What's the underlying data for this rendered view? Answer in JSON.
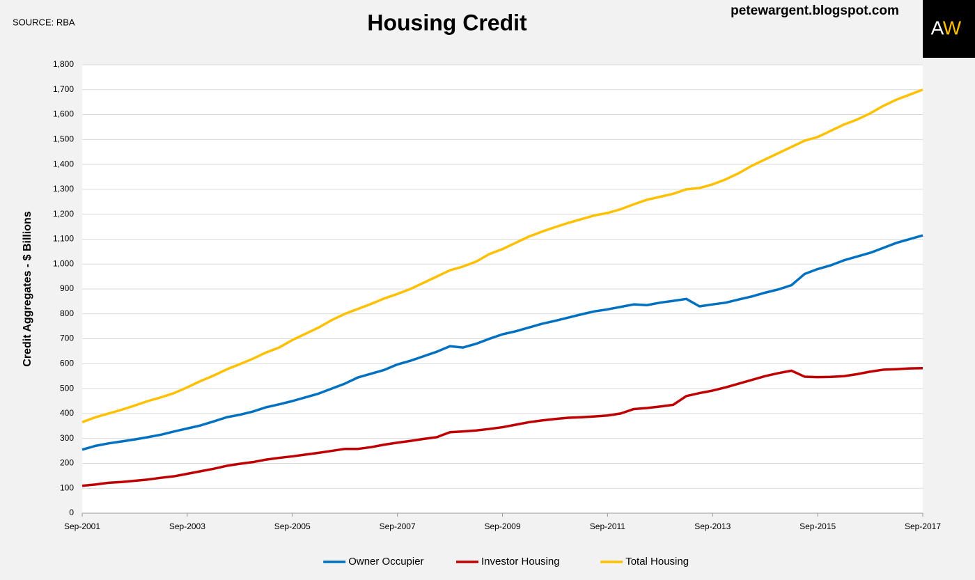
{
  "chart_data": {
    "type": "line",
    "title": "Housing Credit",
    "source": "SOURCE: RBA",
    "website": "petewargent.blogspot.com",
    "logo": {
      "left": "A",
      "right": "W"
    },
    "ylabel": "Credit Aggregates - $ Billions",
    "x": [
      "Sep-2001",
      "Dec-2001",
      "Mar-2002",
      "Jun-2002",
      "Sep-2002",
      "Dec-2002",
      "Mar-2003",
      "Jun-2003",
      "Sep-2003",
      "Dec-2003",
      "Mar-2004",
      "Jun-2004",
      "Sep-2004",
      "Dec-2004",
      "Mar-2005",
      "Jun-2005",
      "Sep-2005",
      "Dec-2005",
      "Mar-2006",
      "Jun-2006",
      "Sep-2006",
      "Dec-2006",
      "Mar-2007",
      "Jun-2007",
      "Sep-2007",
      "Dec-2007",
      "Mar-2008",
      "Jun-2008",
      "Sep-2008",
      "Dec-2008",
      "Mar-2009",
      "Jun-2009",
      "Sep-2009",
      "Dec-2009",
      "Mar-2010",
      "Jun-2010",
      "Sep-2010",
      "Dec-2010",
      "Mar-2011",
      "Jun-2011",
      "Sep-2011",
      "Dec-2011",
      "Mar-2012",
      "Jun-2012",
      "Sep-2012",
      "Dec-2012",
      "Mar-2013",
      "Jun-2013",
      "Sep-2013",
      "Dec-2013",
      "Mar-2014",
      "Jun-2014",
      "Sep-2014",
      "Dec-2014",
      "Mar-2015",
      "Jun-2015",
      "Sep-2015",
      "Dec-2015",
      "Mar-2016",
      "Jun-2016",
      "Sep-2016",
      "Dec-2016",
      "Mar-2017",
      "Jun-2017",
      "Sep-2017"
    ],
    "series": [
      {
        "name": "Owner Occupier",
        "color": "#0070c0",
        "values": [
          255,
          270,
          280,
          288,
          296,
          305,
          315,
          328,
          340,
          352,
          368,
          385,
          395,
          408,
          425,
          437,
          450,
          465,
          480,
          500,
          520,
          545,
          560,
          575,
          597,
          612,
          630,
          648,
          670,
          665,
          680,
          700,
          718,
          730,
          745,
          760,
          772,
          785,
          798,
          810,
          818,
          828,
          838,
          835,
          845,
          852,
          860,
          830,
          838,
          845,
          858,
          870,
          885,
          898,
          915,
          960,
          980,
          995,
          1015,
          1030,
          1045,
          1065,
          1085,
          1100,
          1115
        ]
      },
      {
        "name": "Investor Housing",
        "color": "#c00000",
        "values": [
          110,
          115,
          122,
          125,
          130,
          135,
          142,
          148,
          158,
          168,
          178,
          190,
          198,
          205,
          215,
          222,
          228,
          235,
          242,
          250,
          258,
          258,
          265,
          275,
          283,
          290,
          298,
          305,
          325,
          328,
          332,
          338,
          345,
          355,
          365,
          372,
          378,
          383,
          385,
          388,
          392,
          400,
          418,
          422,
          428,
          435,
          470,
          482,
          492,
          505,
          520,
          535,
          550,
          562,
          572,
          548,
          546,
          547,
          550,
          558,
          568,
          576,
          578,
          581,
          582
        ]
      },
      {
        "name": "Total Housing",
        "color": "#ffc000",
        "values": [
          365,
          385,
          400,
          415,
          432,
          450,
          465,
          482,
          505,
          530,
          552,
          577,
          598,
          620,
          645,
          665,
          695,
          720,
          745,
          775,
          800,
          820,
          840,
          862,
          880,
          900,
          925,
          950,
          975,
          990,
          1010,
          1040,
          1060,
          1085,
          1110,
          1130,
          1148,
          1165,
          1180,
          1195,
          1205,
          1220,
          1240,
          1258,
          1270,
          1282,
          1300,
          1305,
          1320,
          1340,
          1365,
          1395,
          1420,
          1445,
          1470,
          1495,
          1510,
          1535,
          1560,
          1580,
          1605,
          1635,
          1660,
          1680,
          1700
        ]
      }
    ],
    "xlim": [
      "Sep-2001",
      "Sep-2017"
    ],
    "xticks": [
      "Sep-2001",
      "Sep-2003",
      "Sep-2005",
      "Sep-2007",
      "Sep-2009",
      "Sep-2011",
      "Sep-2013",
      "Sep-2015",
      "Sep-2017"
    ],
    "ylim": [
      0,
      1800
    ],
    "yticks": [
      0,
      100,
      200,
      300,
      400,
      500,
      600,
      700,
      800,
      900,
      {
        "value": 1000,
        "label": "1,000"
      },
      {
        "value": 1100,
        "label": "1,100"
      },
      {
        "value": 1200,
        "label": "1,200"
      },
      {
        "value": 1300,
        "label": "1,300"
      },
      {
        "value": 1400,
        "label": "1,400"
      },
      {
        "value": 1500,
        "label": "1,500"
      },
      {
        "value": 1600,
        "label": "1,600"
      },
      {
        "value": 1700,
        "label": "1,700"
      },
      {
        "value": 1800,
        "label": "1,800"
      }
    ],
    "grid": true,
    "legend": "bottom"
  }
}
